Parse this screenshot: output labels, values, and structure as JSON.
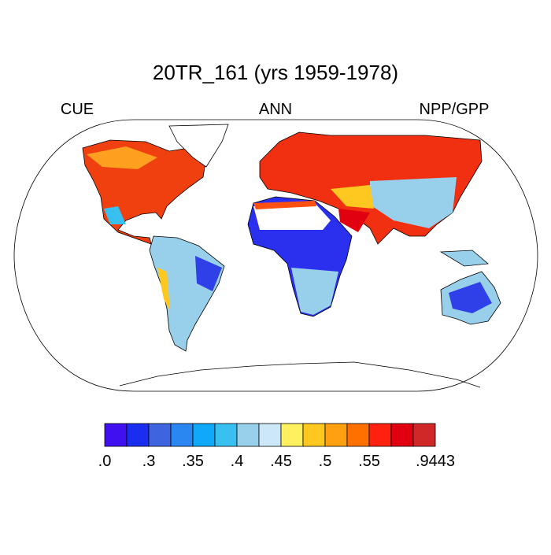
{
  "title": "20TR_161 (yrs 1959-1978)",
  "left_label": "CUE",
  "center_label": "ANN",
  "right_label": "NPP/GPP",
  "colorbar": {
    "colors": [
      "#4010f0",
      "#1a2ef0",
      "#3e64e0",
      "#2a86f0",
      "#10a8f8",
      "#38c0f0",
      "#98d0ec",
      "#cce8f8",
      "#fff060",
      "#ffc820",
      "#ffa010",
      "#ff7000",
      "#ff2010",
      "#e00010",
      "#d02828"
    ],
    "labels": [
      ".0",
      ".3",
      ".35",
      ".4",
      ".45",
      ".5",
      ".55",
      ".9443"
    ]
  }
}
